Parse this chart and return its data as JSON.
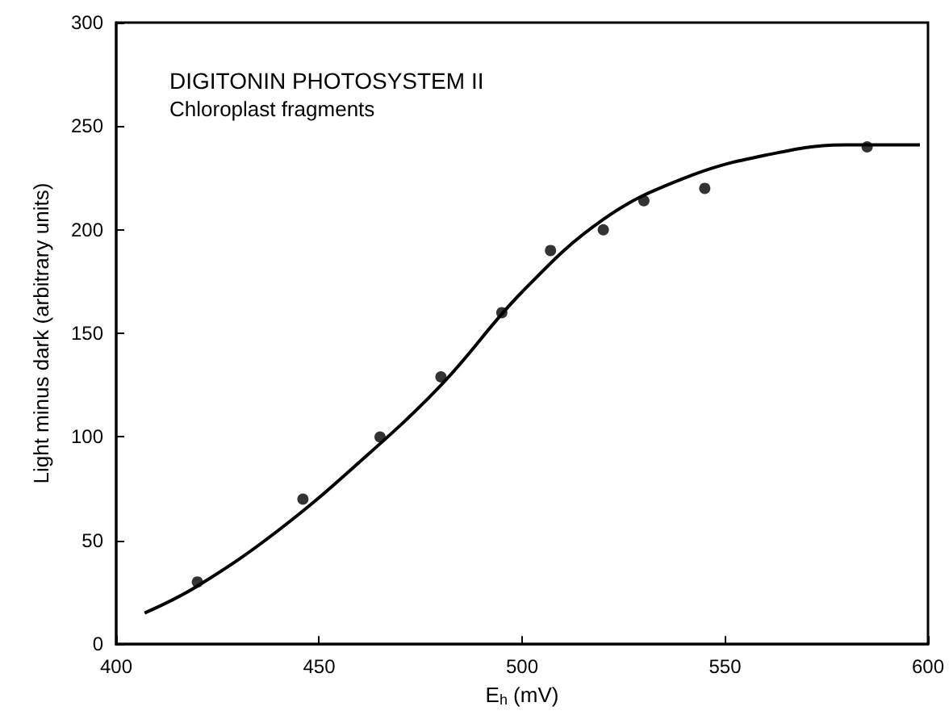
{
  "chart_data": {
    "type": "scatter",
    "title": "DIGITONIN PHOTOSYSTEM II",
    "subtitle": "Chloroplast fragments",
    "xlabel": "E$_{h}$ (mV)",
    "ylabel": "Light minus dark (arbitrary units)",
    "xlim": [
      400,
      600
    ],
    "xticks": [
      400,
      450,
      500,
      550,
      600
    ],
    "ylim": [
      0,
      300
    ],
    "yticks": [
      0,
      50,
      100,
      150,
      200,
      250,
      300
    ],
    "grid": false,
    "series": [
      {
        "color": "#000000",
        "marker": "circle",
        "x": [
          420,
          446,
          465,
          480,
          495,
          507,
          520,
          530,
          545,
          585
        ],
        "values": [
          30,
          70,
          100,
          129,
          160,
          190,
          200,
          214,
          220,
          240
        ]
      },
      {
        "type": "line",
        "color": "#000000",
        "marker": "none",
        "line_style": "solid",
        "x": [
          407,
          420,
          440,
          460,
          480,
          500,
          520,
          540,
          560,
          580,
          598
        ],
        "values": [
          15,
          28,
          55,
          88,
          125,
          170,
          205,
          225,
          236,
          241,
          241
        ]
      }
    ]
  }
}
